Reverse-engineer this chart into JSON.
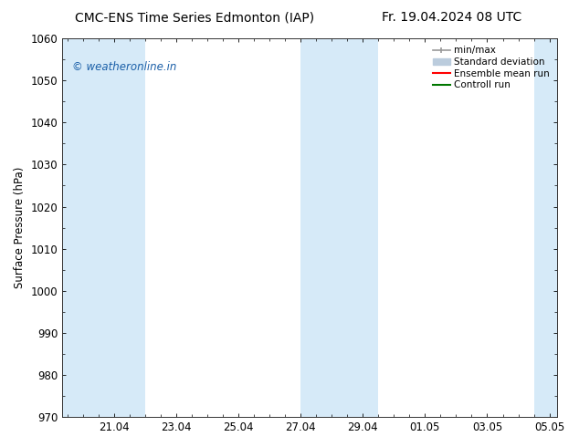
{
  "title_left": "CMC-ENS Time Series Edmonton (IAP)",
  "title_right": "Fr. 19.04.2024 08 UTC",
  "ylabel": "Surface Pressure (hPa)",
  "ylim": [
    970,
    1060
  ],
  "yticks": [
    970,
    980,
    990,
    1000,
    1010,
    1020,
    1030,
    1040,
    1050,
    1060
  ],
  "xtick_labels": [
    "21.04",
    "23.04",
    "25.04",
    "27.04",
    "29.04",
    "01.05",
    "03.05",
    "05.05"
  ],
  "shaded_color": "#d6eaf8",
  "watermark_text": "© weatheronline.in",
  "watermark_color": "#1a5fa8",
  "legend_labels": [
    "min/max",
    "Standard deviation",
    "Ensemble mean run",
    "Controll run"
  ],
  "legend_line_colors_minmax": "#999999",
  "legend_fill_std": "#bbccdd",
  "legend_line_ens": "#ff0000",
  "legend_line_ctrl": "#007700",
  "background_color": "#ffffff",
  "title_fontsize": 10,
  "label_fontsize": 8.5,
  "tick_fontsize": 8.5,
  "watermark_fontsize": 8.5,
  "legend_fontsize": 7.5
}
